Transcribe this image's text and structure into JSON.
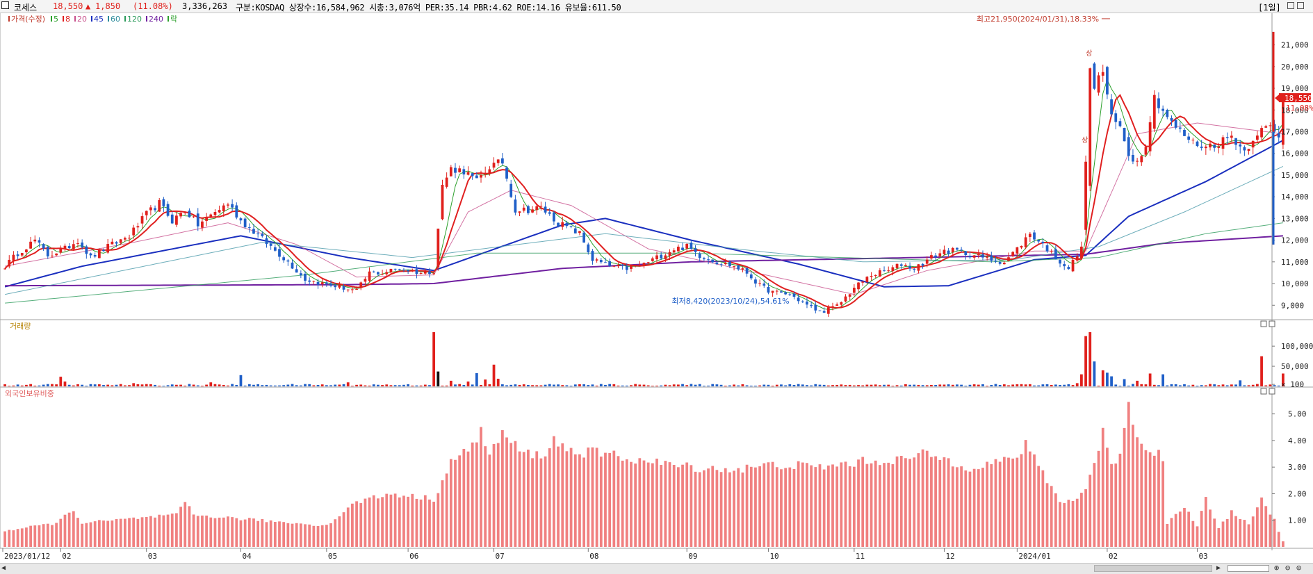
{
  "header": {
    "name": "코세스",
    "price": "18,550",
    "change_arrow": "▲",
    "change": "1,850",
    "change_pct": "(11.08%)",
    "volume": "3,336,263",
    "info": "구분:KOSDAQ 상장수:16,584,962 시총:3,076억 PER:35.14 PBR:4.62 ROE:14.16 유보율:611.50",
    "period": "[1일]"
  },
  "legend": {
    "items": [
      {
        "label": "가격(수정)",
        "color": "#c0392b"
      },
      {
        "label": "5",
        "color": "#2ca02c"
      },
      {
        "label": "8",
        "color": "#e02020"
      },
      {
        "label": "20",
        "color": "#c8508c"
      },
      {
        "label": "45",
        "color": "#1a2fbf"
      },
      {
        "label": "60",
        "color": "#2a8a9a"
      },
      {
        "label": "120",
        "color": "#2a9a5a"
      },
      {
        "label": "240",
        "color": "#7020a0"
      },
      {
        "label": "락",
        "color": "#2ca02c"
      }
    ]
  },
  "panels": {
    "volume_title": "거래량",
    "foreign_title": "외국인보유비중"
  },
  "price_badge": {
    "price": "18,550",
    "pct": "11.08%"
  },
  "annotations": {
    "high": "최고21,950(2024/01/31),18.33%",
    "low": "최저8,420(2023/10/24),54.61%",
    "limit_up": "상"
  },
  "colors": {
    "up": "#e0201c",
    "down": "#1f5fc8",
    "ma5": "#2ca02c",
    "ma8": "#e02020",
    "ma20": "#c8508c",
    "ma45": "#1a2fbf",
    "ma60": "#4a9aaa",
    "ma120": "#2a9a5a",
    "ma240": "#7020a0",
    "foreign_bar": "#f08080"
  },
  "chart_data": {
    "type": "candlestick",
    "ylim": [
      8400,
      22300
    ],
    "y_ticks": [
      "21,000",
      "20,000",
      "19,000",
      "18,000",
      "17,000",
      "16,000",
      "15,000",
      "14,000",
      "13,000",
      "12,000",
      "11,000",
      "10,000",
      "9,000"
    ],
    "x_labels": [
      "2023/01/12",
      "02",
      "03",
      "04",
      "05",
      "06",
      "07",
      "08",
      "09",
      "10",
      "11",
      "12",
      "2024/01",
      "02",
      "03"
    ],
    "x_label_sessions": [
      0,
      13,
      33,
      55,
      75,
      94,
      114,
      136,
      159,
      178,
      198,
      219,
      236,
      257,
      278
    ],
    "price_anchors": [
      [
        0,
        10800
      ],
      [
        3,
        11400
      ],
      [
        7,
        12000
      ],
      [
        10,
        11300
      ],
      [
        14,
        11600
      ],
      [
        17,
        12000
      ],
      [
        20,
        11200
      ],
      [
        24,
        11700
      ],
      [
        29,
        12200
      ],
      [
        33,
        13200
      ],
      [
        36,
        13700
      ],
      [
        39,
        12900
      ],
      [
        42,
        13400
      ],
      [
        45,
        12700
      ],
      [
        49,
        13300
      ],
      [
        52,
        13700
      ],
      [
        55,
        12900
      ],
      [
        58,
        12400
      ],
      [
        62,
        11700
      ],
      [
        66,
        11000
      ],
      [
        70,
        10200
      ],
      [
        74,
        10000
      ],
      [
        78,
        9850
      ],
      [
        82,
        9650
      ],
      [
        85,
        10500
      ],
      [
        88,
        10500
      ],
      [
        92,
        10700
      ],
      [
        97,
        10500
      ],
      [
        100,
        10600
      ],
      [
        102,
        14500
      ],
      [
        104,
        15300
      ],
      [
        107,
        15200
      ],
      [
        110,
        14700
      ],
      [
        113,
        15400
      ],
      [
        116,
        15600
      ],
      [
        119,
        13400
      ],
      [
        122,
        13400
      ],
      [
        125,
        13500
      ],
      [
        129,
        12800
      ],
      [
        132,
        12500
      ],
      [
        134,
        12300
      ],
      [
        137,
        11100
      ],
      [
        141,
        10800
      ],
      [
        145,
        10700
      ],
      [
        149,
        10900
      ],
      [
        152,
        11200
      ],
      [
        156,
        11600
      ],
      [
        159,
        11700
      ],
      [
        162,
        11300
      ],
      [
        166,
        11000
      ],
      [
        170,
        10800
      ],
      [
        173,
        10500
      ],
      [
        176,
        9900
      ],
      [
        179,
        9600
      ],
      [
        183,
        9500
      ],
      [
        187,
        9000
      ],
      [
        190,
        8700
      ],
      [
        194,
        8950
      ],
      [
        198,
        9800
      ],
      [
        202,
        10400
      ],
      [
        206,
        10600
      ],
      [
        209,
        10900
      ],
      [
        212,
        10700
      ],
      [
        216,
        11200
      ],
      [
        219,
        11500
      ],
      [
        222,
        11500
      ],
      [
        226,
        11300
      ],
      [
        230,
        11100
      ],
      [
        233,
        11000
      ],
      [
        236,
        11600
      ],
      [
        239,
        12300
      ],
      [
        242,
        11800
      ],
      [
        245,
        11200
      ],
      [
        248,
        10700
      ],
      [
        251,
        11600
      ],
      [
        252,
        15800
      ],
      [
        253,
        19700
      ],
      [
        254,
        19100
      ],
      [
        256,
        19800
      ],
      [
        258,
        17600
      ],
      [
        260,
        17200
      ],
      [
        262,
        16000
      ],
      [
        264,
        15600
      ],
      [
        266,
        16500
      ],
      [
        268,
        18600
      ],
      [
        270,
        18000
      ],
      [
        272,
        17400
      ],
      [
        274,
        17000
      ],
      [
        277,
        16500
      ],
      [
        280,
        16300
      ],
      [
        283,
        16500
      ],
      [
        286,
        16800
      ],
      [
        289,
        16100
      ],
      [
        292,
        17000
      ],
      [
        295,
        17200
      ],
      [
        297,
        16700
      ],
      [
        298,
        18550
      ]
    ],
    "ma_series": [
      {
        "name": "45",
        "width": 2,
        "points": [
          [
            0,
            9850
          ],
          [
            18,
            10800
          ],
          [
            55,
            12200
          ],
          [
            80,
            11200
          ],
          [
            100,
            10600
          ],
          [
            130,
            12700
          ],
          [
            140,
            13000
          ],
          [
            160,
            12000
          ],
          [
            185,
            10900
          ],
          [
            205,
            9850
          ],
          [
            220,
            9900
          ],
          [
            240,
            11100
          ],
          [
            252,
            11300
          ],
          [
            262,
            13100
          ],
          [
            280,
            14700
          ],
          [
            298,
            16600
          ]
        ]
      },
      {
        "name": "240",
        "width": 2,
        "points": [
          [
            0,
            9900
          ],
          [
            80,
            9950
          ],
          [
            100,
            10000
          ],
          [
            130,
            10700
          ],
          [
            160,
            11000
          ],
          [
            200,
            11150
          ],
          [
            252,
            11350
          ],
          [
            270,
            11850
          ],
          [
            298,
            12200
          ]
        ]
      },
      {
        "name": "20",
        "width": 1,
        "points": [
          [
            0,
            10800
          ],
          [
            30,
            11900
          ],
          [
            52,
            12800
          ],
          [
            68,
            11800
          ],
          [
            82,
            10300
          ],
          [
            100,
            10400
          ],
          [
            108,
            13300
          ],
          [
            118,
            14300
          ],
          [
            132,
            13600
          ],
          [
            150,
            11600
          ],
          [
            175,
            10500
          ],
          [
            198,
            9500
          ],
          [
            215,
            10600
          ],
          [
            240,
            11500
          ],
          [
            252,
            11500
          ],
          [
            264,
            16900
          ],
          [
            278,
            17400
          ],
          [
            298,
            16900
          ]
        ]
      },
      {
        "name": "60",
        "width": 1,
        "points": [
          [
            0,
            9500
          ],
          [
            60,
            11900
          ],
          [
            95,
            11200
          ],
          [
            140,
            12300
          ],
          [
            175,
            11500
          ],
          [
            200,
            11000
          ],
          [
            235,
            11100
          ],
          [
            255,
            11700
          ],
          [
            275,
            13300
          ],
          [
            298,
            15400
          ]
        ]
      },
      {
        "name": "120",
        "width": 1,
        "points": [
          [
            0,
            9100
          ],
          [
            70,
            10400
          ],
          [
            110,
            11400
          ],
          [
            160,
            11400
          ],
          [
            230,
            11000
          ],
          [
            255,
            11200
          ],
          [
            280,
            12300
          ],
          [
            298,
            12800
          ]
        ]
      }
    ],
    "limit_up_sessions": [
      252,
      253
    ],
    "high_session": 257,
    "high_price": 21950,
    "low_session": 190,
    "low_price": 8420,
    "volume": {
      "y_ticks": [
        "100,000",
        "50,000",
        "× 100"
      ],
      "scale_max": 140000,
      "spikes": [
        [
          13,
          24000
        ],
        [
          14,
          12000
        ],
        [
          30,
          8000
        ],
        [
          48,
          10000
        ],
        [
          55,
          28000
        ],
        [
          80,
          10000
        ],
        [
          100,
          135000
        ],
        [
          101,
          37000
        ],
        [
          104,
          14000
        ],
        [
          108,
          12000
        ],
        [
          110,
          33000
        ],
        [
          112,
          17000
        ],
        [
          114,
          54000
        ],
        [
          115,
          19000
        ],
        [
          250,
          8000
        ],
        [
          251,
          30000
        ],
        [
          252,
          125000
        ],
        [
          253,
          135000
        ],
        [
          254,
          62000
        ],
        [
          256,
          40000
        ],
        [
          257,
          34000
        ],
        [
          258,
          25000
        ],
        [
          261,
          18000
        ],
        [
          264,
          14000
        ],
        [
          267,
          32000
        ],
        [
          270,
          30000
        ],
        [
          288,
          15000
        ],
        [
          293,
          75000
        ],
        [
          298,
          32000
        ]
      ]
    },
    "foreign": {
      "y_ticks": [
        "5.00",
        "4.00",
        "3.00",
        "2.00",
        "1.00"
      ],
      "ylim": [
        0,
        5.8
      ],
      "points": [
        [
          0,
          0.6
        ],
        [
          12,
          0.9
        ],
        [
          16,
          1.4
        ],
        [
          18,
          0.9
        ],
        [
          40,
          1.2
        ],
        [
          42,
          1.7
        ],
        [
          44,
          1.2
        ],
        [
          75,
          0.8
        ],
        [
          82,
          1.7
        ],
        [
          90,
          2.0
        ],
        [
          100,
          1.8
        ],
        [
          104,
          3.2
        ],
        [
          108,
          3.6
        ],
        [
          111,
          4.4
        ],
        [
          113,
          3.4
        ],
        [
          116,
          4.3
        ],
        [
          120,
          3.6
        ],
        [
          125,
          3.4
        ],
        [
          128,
          4.0
        ],
        [
          132,
          3.6
        ],
        [
          140,
          3.5
        ],
        [
          150,
          3.2
        ],
        [
          160,
          3.0
        ],
        [
          170,
          2.9
        ],
        [
          180,
          3.1
        ],
        [
          190,
          3.0
        ],
        [
          200,
          3.2
        ],
        [
          210,
          3.3
        ],
        [
          215,
          3.5
        ],
        [
          225,
          3.0
        ],
        [
          235,
          3.3
        ],
        [
          238,
          3.8
        ],
        [
          242,
          2.8
        ],
        [
          246,
          1.7
        ],
        [
          250,
          1.8
        ],
        [
          252,
          2.2
        ],
        [
          254,
          3.2
        ],
        [
          256,
          4.3
        ],
        [
          258,
          3.0
        ],
        [
          260,
          3.6
        ],
        [
          262,
          5.5
        ],
        [
          264,
          4.0
        ],
        [
          266,
          3.8
        ],
        [
          270,
          3.4
        ],
        [
          271,
          0.9
        ],
        [
          273,
          1.2
        ],
        [
          275,
          1.5
        ],
        [
          278,
          0.8
        ],
        [
          280,
          1.8
        ],
        [
          283,
          0.7
        ],
        [
          286,
          1.3
        ],
        [
          290,
          0.9
        ],
        [
          293,
          1.8
        ],
        [
          296,
          1.0
        ],
        [
          298,
          0.2
        ]
      ]
    }
  }
}
